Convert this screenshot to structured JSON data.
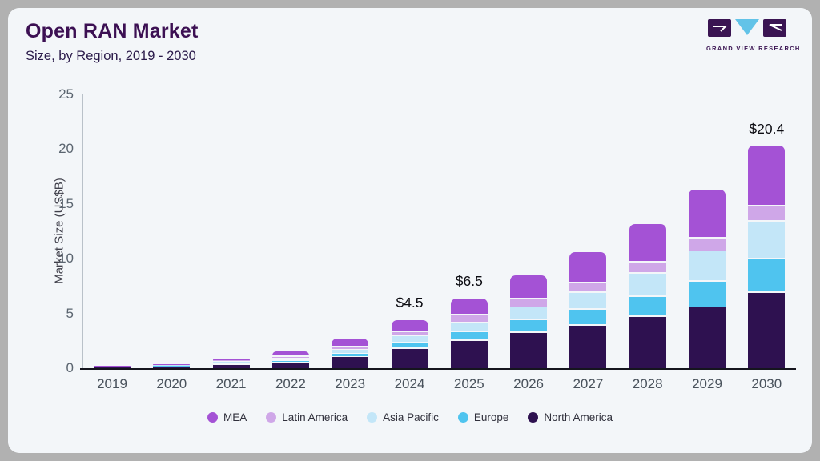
{
  "header": {
    "title": "Open RAN Market",
    "subtitle": "Size, by Region, 2019 - 2030"
  },
  "logo": {
    "text": "GRAND VIEW RESEARCH",
    "dark_color": "#3a1452",
    "accent_color": "#62c3e8"
  },
  "chart_data": {
    "type": "bar",
    "stacked": true,
    "title": "Open RAN Market",
    "subtitle": "Size, by Region, 2019 - 2030",
    "xlabel": "",
    "ylabel": "Market Size (US$B)",
    "ylim": [
      0,
      25
    ],
    "yticks": [
      0,
      5,
      10,
      15,
      20,
      25
    ],
    "grid": false,
    "legend_position": "bottom",
    "categories": [
      "2019",
      "2020",
      "2021",
      "2022",
      "2023",
      "2024",
      "2025",
      "2026",
      "2027",
      "2028",
      "2029",
      "2030"
    ],
    "series": [
      {
        "name": "North America",
        "color": "#2e1150",
        "values": [
          0.08,
          0.17,
          0.42,
          0.61,
          1.12,
          1.88,
          2.63,
          3.34,
          4.0,
          4.82,
          5.65,
          7.0
        ]
      },
      {
        "name": "Europe",
        "color": "#4fc4ef",
        "values": [
          0.02,
          0.04,
          0.1,
          0.17,
          0.3,
          0.55,
          0.78,
          1.17,
          1.46,
          1.81,
          2.39,
          3.12
        ]
      },
      {
        "name": "Asia Pacific",
        "color": "#c3e6f8",
        "values": [
          0.03,
          0.05,
          0.12,
          0.19,
          0.36,
          0.62,
          0.85,
          1.14,
          1.54,
          2.14,
          2.73,
          3.41
        ]
      },
      {
        "name": "Latin America",
        "color": "#cfa7e8",
        "values": [
          0.02,
          0.04,
          0.08,
          0.18,
          0.28,
          0.37,
          0.73,
          0.81,
          0.92,
          1.03,
          1.22,
          1.39
        ]
      },
      {
        "name": "MEA",
        "color": "#a452d5",
        "values": [
          0.05,
          0.1,
          0.28,
          0.48,
          0.74,
          1.08,
          1.51,
          2.12,
          2.83,
          3.48,
          4.46,
          5.5
        ]
      }
    ],
    "totals": [
      0.2,
      0.4,
      1.0,
      1.6,
      2.8,
      4.5,
      6.5,
      8.6,
      10.8,
      13.3,
      16.4,
      20.4
    ],
    "bar_labels": {
      "2024": "$4.5",
      "2025": "$6.5",
      "2030": "$20.4"
    },
    "legend": [
      {
        "name": "MEA",
        "color": "#a452d5"
      },
      {
        "name": "Latin America",
        "color": "#cfa7e8"
      },
      {
        "name": "Asia Pacific",
        "color": "#c3e6f8"
      },
      {
        "name": "Europe",
        "color": "#4fc4ef"
      },
      {
        "name": "North America",
        "color": "#2e1150"
      }
    ]
  }
}
